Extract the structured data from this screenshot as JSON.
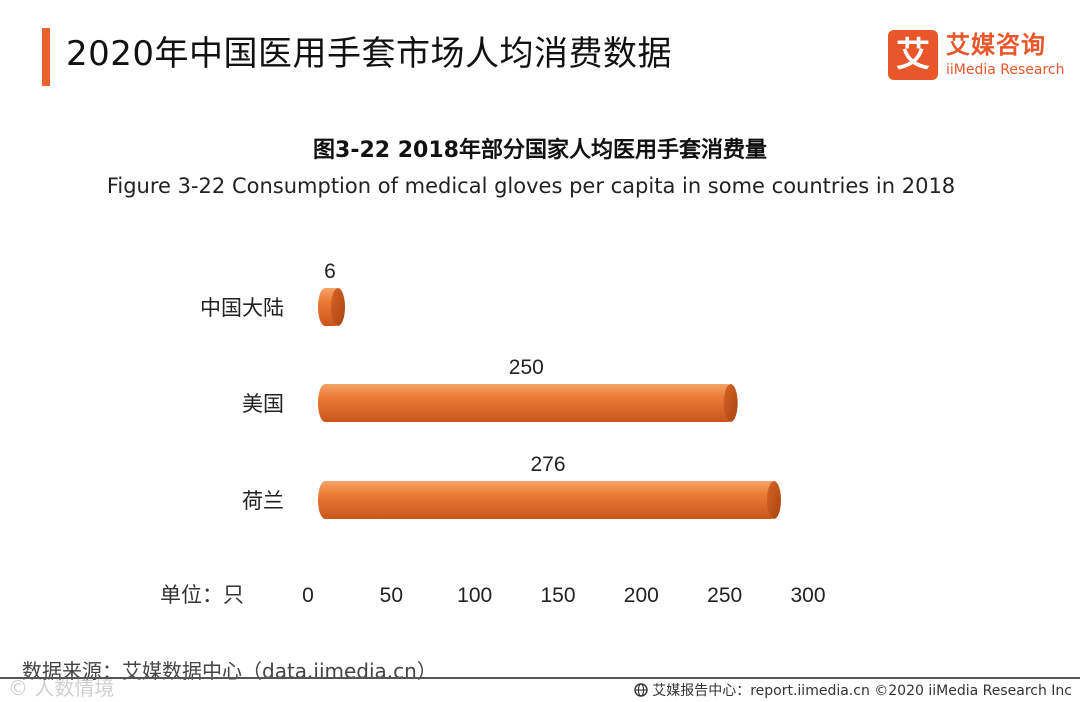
{
  "header": {
    "title": "2020年中国医用手套市场人均消费数据",
    "logo_mark": "艾",
    "logo_cn": "艾媒咨询",
    "logo_en": "iiMedia Research"
  },
  "chart_data": {
    "type": "bar",
    "orientation": "horizontal",
    "title": "图3-22 2018年部分国家人均医用手套消费量",
    "subtitle": "Figure 3-22 Consumption of medical gloves per capita in some countries in 2018",
    "categories": [
      "中国大陆",
      "美国",
      "荷兰"
    ],
    "values": [
      6,
      250,
      276
    ],
    "unit_label": "单位：只",
    "xlim": [
      0,
      300
    ],
    "x_ticks": [
      0,
      50,
      100,
      150,
      200,
      250,
      300
    ],
    "grid": false,
    "bar_color": "#E8762E"
  },
  "footer": {
    "source": "数据来源：艾媒数据中心（data.iimedia.cn）",
    "report": "艾媒报告中心：report.iimedia.cn ©2020 iiMedia Research Inc",
    "watermark": "© 人数情境"
  }
}
